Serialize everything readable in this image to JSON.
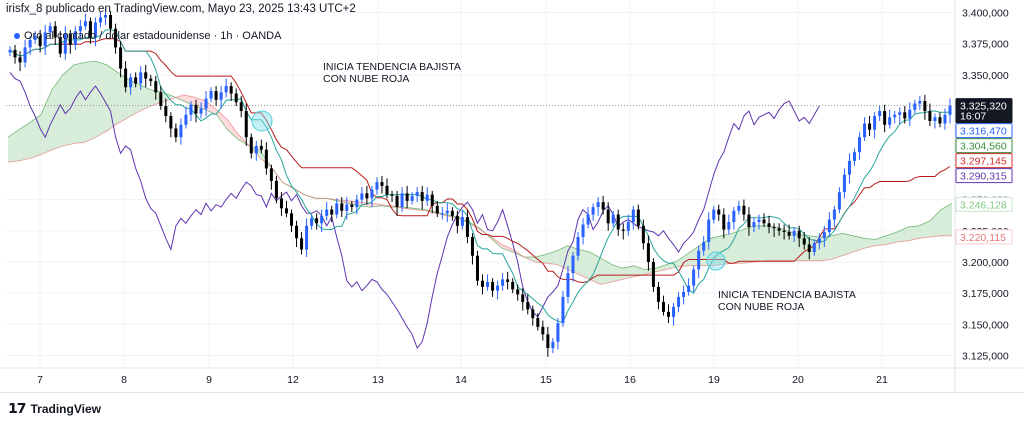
{
  "header": {
    "published_by": "irisfx_8 publicado en TradingView.com, Mayo 23, 2025 13:43 UTC+2",
    "symbol": "Oro al contado / dólar estadounidense · 1h · OANDA"
  },
  "annotations": {
    "first_line1": "INICIA TENDENCIA BAJISTA",
    "first_line2": "CON NUBE ROJA",
    "second_line1": "INICIA TENDENCIA BAJISTA",
    "second_line2": "CON NUBE ROJA"
  },
  "footer": {
    "brand": "TradingView"
  },
  "colors": {
    "up": "#2962ff",
    "down": "#000000",
    "kumo_bull": "#c8e6c9",
    "kumo_bear": "#ffcdd2",
    "tenkan": "#2962ff",
    "kijun": "#b71c1c",
    "chikou": "#5e35b1",
    "senkou_a": "#43a047",
    "senkou_b": "#e57373"
  },
  "chart_data": {
    "type": "candlestick",
    "indicator": "Ichimoku Cloud",
    "ylim": [
      3115,
      3410
    ],
    "y_ticks": [
      {
        "label": "3.400,000",
        "value": 3400
      },
      {
        "label": "3.375,000",
        "value": 3375
      },
      {
        "label": "3.350,000",
        "value": 3350
      },
      {
        "label": "3.250,000",
        "value": 3250
      },
      {
        "label": "3.225,000",
        "value": 3225
      },
      {
        "label": "3.200,000",
        "value": 3200
      },
      {
        "label": "3.175,000",
        "value": 3175
      },
      {
        "label": "3.150,000",
        "value": 3150
      },
      {
        "label": "3.125,000",
        "value": 3125
      }
    ],
    "x_ticks": [
      "7",
      "8",
      "9",
      "12",
      "13",
      "14",
      "15",
      "16",
      "19",
      "20",
      "21"
    ],
    "price_labels": [
      {
        "label": "3.325,320",
        "sub": "16:07",
        "value": 3325.32,
        "bg": "#131722",
        "fg": "#ffffff"
      },
      {
        "label": "3.316,470",
        "value": 3316.47,
        "bg": "#ffffff",
        "fg": "#2962ff",
        "border": "#2962ff"
      },
      {
        "label": "3.304,560",
        "value": 3304.56,
        "bg": "#ffffff",
        "fg": "#388e3c",
        "border": "#388e3c"
      },
      {
        "label": "3.297,145",
        "value": 3297.145,
        "bg": "#ffffff",
        "fg": "#d32f2f",
        "border": "#d32f2f"
      },
      {
        "label": "3.290,315",
        "value": 3290.315,
        "bg": "#ffffff",
        "fg": "#5e35b1",
        "border": "#5e35b1"
      },
      {
        "label": "3.246,128",
        "value": 3246.128,
        "bg": "#ffffff",
        "fg": "#81c784",
        "border": "#c8e6c9"
      },
      {
        "label": "3.220,115",
        "value": 3220.115,
        "bg": "#ffffff",
        "fg": "#e57373",
        "border": "#ffcdd2"
      }
    ],
    "candle_closes": [
      3370,
      3364,
      3360,
      3372,
      3378,
      3381,
      3373,
      3384,
      3389,
      3380,
      3367,
      3383,
      3374,
      3385,
      3389,
      3393,
      3380,
      3392,
      3396,
      3398,
      3387,
      3372,
      3355,
      3340,
      3348,
      3343,
      3352,
      3347,
      3345,
      3336,
      3325,
      3317,
      3307,
      3300,
      3310,
      3318,
      3326,
      3319,
      3323,
      3331,
      3337,
      3330,
      3336,
      3341,
      3335,
      3328,
      3321,
      3300,
      3287,
      3293,
      3290,
      3275,
      3265,
      3251,
      3243,
      3239,
      3229,
      3219,
      3210,
      3229,
      3235,
      3231,
      3237,
      3242,
      3238,
      3247,
      3241,
      3246,
      3244,
      3250,
      3255,
      3251,
      3258,
      3264,
      3261,
      3254,
      3253,
      3244,
      3255,
      3249,
      3253,
      3256,
      3249,
      3254,
      3245,
      3239,
      3239,
      3241,
      3237,
      3229,
      3236,
      3220,
      3205,
      3185,
      3180,
      3184,
      3177,
      3181,
      3186,
      3184,
      3178,
      3174,
      3168,
      3162,
      3155,
      3148,
      3142,
      3131,
      3136,
      3151,
      3172,
      3191,
      3205,
      3220,
      3230,
      3238,
      3244,
      3248,
      3242,
      3231,
      3238,
      3226,
      3225,
      3232,
      3242,
      3229,
      3215,
      3200,
      3180,
      3168,
      3160,
      3156,
      3164,
      3172,
      3176,
      3181,
      3194,
      3209,
      3216,
      3234,
      3242,
      3238,
      3226,
      3232,
      3241,
      3245,
      3238,
      3228,
      3232,
      3234,
      3231,
      3228,
      3227,
      3225,
      3224,
      3221,
      3225,
      3219,
      3214,
      3208,
      3215,
      3219,
      3224,
      3234,
      3242,
      3256,
      3270,
      3281,
      3288,
      3300,
      3311,
      3306,
      3317,
      3321,
      3310,
      3316,
      3318,
      3320,
      3315,
      3322,
      3327,
      3329,
      3321,
      3313,
      3316,
      3311,
      3318,
      3325
    ],
    "kumo_a_points": [
      3300,
      3306,
      3312,
      3318,
      3338,
      3350,
      3358,
      3360,
      3361,
      3358,
      3352,
      3346,
      3342,
      3338,
      3336,
      3333,
      3329,
      3325,
      3322,
      3318,
      3306,
      3298,
      3293,
      3289,
      3276,
      3264,
      3259,
      3254,
      3251,
      3251,
      3249,
      3247,
      3245,
      3244,
      3245,
      3244,
      3244,
      3243,
      3242,
      3240,
      3238,
      3236,
      3232,
      3227,
      3219,
      3211,
      3208,
      3204,
      3204,
      3206,
      3209,
      3213,
      3210,
      3208,
      3203,
      3198,
      3195,
      3197,
      3194,
      3195,
      3198,
      3201,
      3207,
      3213,
      3219,
      3221,
      3223,
      3226,
      3229,
      3229,
      3228,
      3225,
      3222,
      3221,
      3220,
      3221,
      3223,
      3221,
      3219,
      3218,
      3221,
      3224,
      3228,
      3229,
      3233,
      3242,
      3247
    ],
    "kumo_b_points": [
      3280,
      3281,
      3283,
      3286,
      3290,
      3293,
      3295,
      3296,
      3300,
      3305,
      3311,
      3316,
      3321,
      3325,
      3328,
      3331,
      3334,
      3332,
      3329,
      3322,
      3314,
      3302,
      3293,
      3283,
      3276,
      3264,
      3259,
      3254,
      3251,
      3251,
      3250,
      3249,
      3248,
      3247,
      3246,
      3245,
      3243,
      3242,
      3241,
      3239,
      3237,
      3235,
      3231,
      3226,
      3220,
      3214,
      3210,
      3204,
      3200,
      3199,
      3198,
      3194,
      3190,
      3186,
      3182,
      3184,
      3186,
      3188,
      3190,
      3192,
      3194,
      3196,
      3197,
      3197,
      3197,
      3198,
      3199,
      3199,
      3200,
      3201,
      3201,
      3201,
      3201,
      3201,
      3201,
      3202,
      3205,
      3208,
      3211,
      3213,
      3214,
      3216,
      3217,
      3219,
      3220,
      3221,
      3221
    ]
  }
}
